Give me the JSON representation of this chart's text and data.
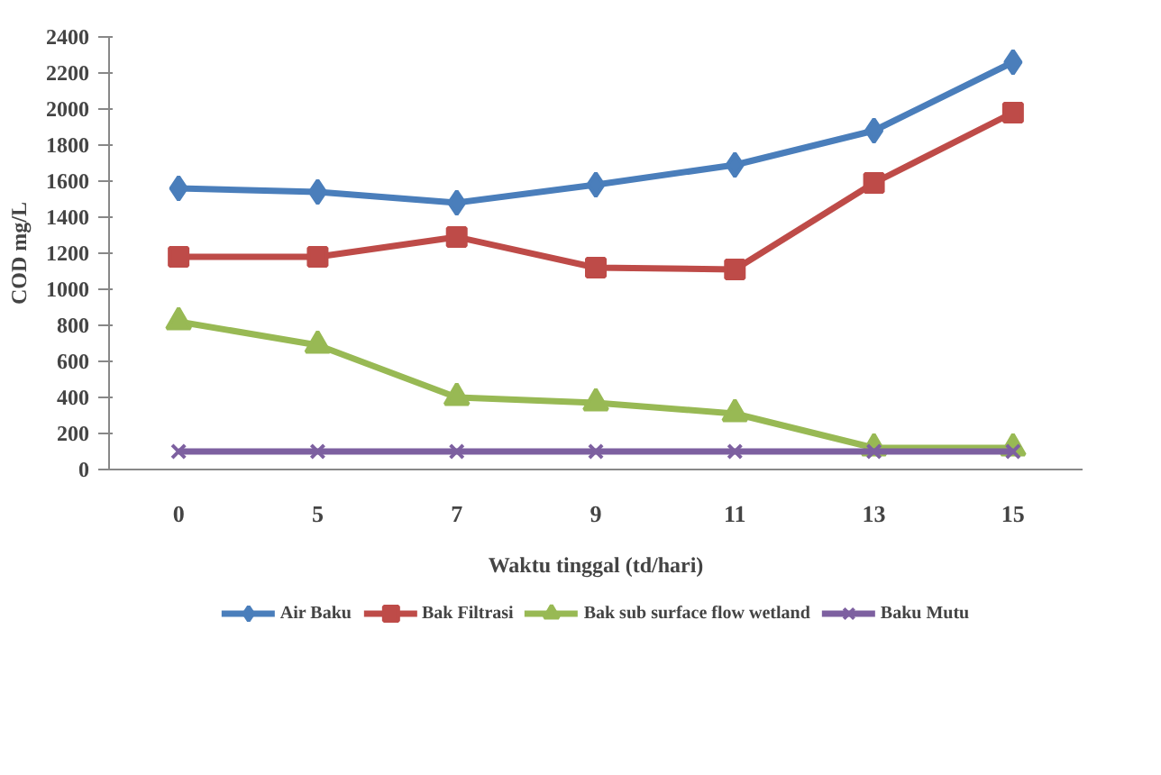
{
  "chart_data": {
    "type": "line",
    "xlabel": "Waktu tinggal (td/hari)",
    "ylabel": "COD mg/L",
    "categories": [
      "0",
      "5",
      "7",
      "9",
      "11",
      "13",
      "15"
    ],
    "ylim": [
      0,
      2400
    ],
    "yticks": [
      0,
      200,
      400,
      600,
      800,
      1000,
      1200,
      1400,
      1600,
      1800,
      2000,
      2200,
      2400
    ],
    "grid": false,
    "legend": "bottom",
    "line_style": "solid",
    "series": [
      {
        "name": "Air Baku",
        "color": "#4a7ebb",
        "marker": "diamond",
        "values": [
          1560,
          1540,
          1480,
          1580,
          1690,
          1880,
          2260
        ]
      },
      {
        "name": "Bak Filtrasi",
        "color": "#be4b48",
        "marker": "square",
        "values": [
          1180,
          1180,
          1290,
          1120,
          1110,
          1590,
          1980
        ]
      },
      {
        "name": "Bak sub surface flow wetland",
        "color": "#98b954",
        "marker": "triangle",
        "values": [
          820,
          690,
          400,
          370,
          310,
          120,
          120
        ]
      },
      {
        "name": "Baku Mutu",
        "color": "#7d60a0",
        "marker": "cross",
        "values": [
          100,
          100,
          100,
          100,
          100,
          100,
          100
        ]
      }
    ]
  }
}
